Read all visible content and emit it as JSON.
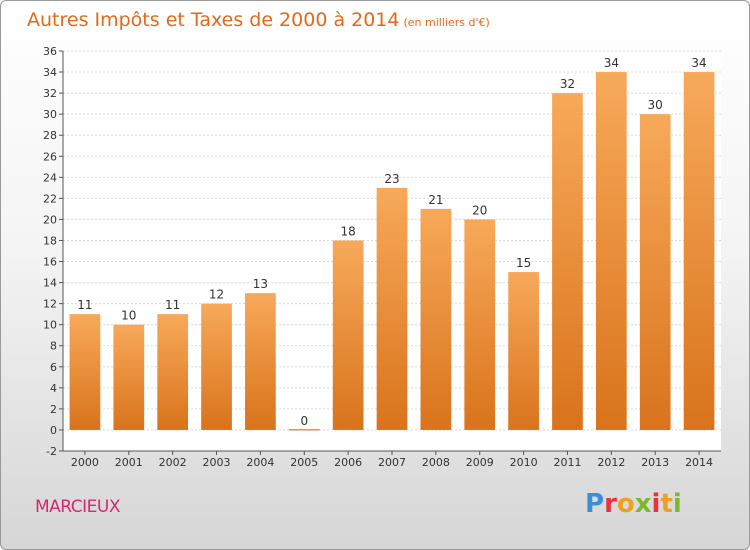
{
  "title": "Autres Impôts et Taxes de 2000 à 2014",
  "unit": "(en milliers d'€)",
  "place": "MARCIEUX",
  "logo": {
    "letters": [
      "P",
      "r",
      "o",
      "x",
      "i",
      "t",
      "i"
    ]
  },
  "colors": {
    "bar_top": "#f7a95a",
    "bar_bottom": "#d9731c",
    "title": "#e06a1a",
    "place": "#d6286e"
  },
  "chart_data": {
    "type": "bar",
    "title": "Autres Impôts et Taxes de 2000 à 2014",
    "categories": [
      "2000",
      "2001",
      "2002",
      "2003",
      "2004",
      "2005",
      "2006",
      "2007",
      "2008",
      "2009",
      "2010",
      "2011",
      "2012",
      "2013",
      "2014"
    ],
    "values": [
      11,
      10,
      11,
      12,
      13,
      0,
      18,
      23,
      21,
      20,
      15,
      32,
      34,
      30,
      34
    ],
    "ylim": [
      -2,
      36
    ],
    "yticks": [
      -2,
      0,
      2,
      4,
      6,
      8,
      10,
      12,
      14,
      16,
      18,
      20,
      22,
      24,
      26,
      28,
      30,
      32,
      34,
      36
    ],
    "grid": true,
    "xlabel": "",
    "ylabel": ""
  }
}
